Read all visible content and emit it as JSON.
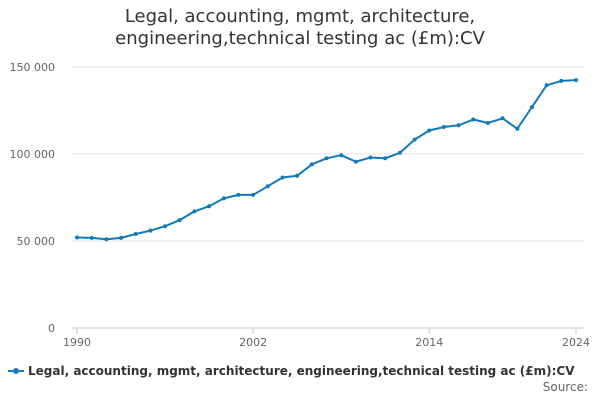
{
  "title_lines": [
    "Legal, accounting, mgmt, architecture,",
    "engineering,technical testing ac (£m):CV"
  ],
  "source_label": "Source:",
  "colors": {
    "series": "#0f7ab8",
    "grid": "#e6e6e6",
    "axis_text": "#666666"
  },
  "chart_data": {
    "type": "line",
    "title": "Legal, accounting, mgmt, architecture, engineering,technical testing ac (£m):CV",
    "xlabel": "",
    "ylabel": "",
    "xlim": [
      1990,
      2024
    ],
    "ylim": [
      0,
      150000
    ],
    "y_ticks": [
      0,
      50000,
      100000,
      150000
    ],
    "y_tick_labels": [
      "0",
      "50 000",
      "100 000",
      "150 000"
    ],
    "x_ticks": [
      1990,
      2002,
      2014,
      2024
    ],
    "x_tick_labels": [
      "1990",
      "2002",
      "2014",
      "2024"
    ],
    "grid": true,
    "legend_position": "bottom-left",
    "series": [
      {
        "name": "Legal, accounting, mgmt, architecture, engineering,technical testing ac (£m):CV",
        "x": [
          1990,
          1991,
          1992,
          1993,
          1994,
          1995,
          1996,
          1997,
          1998,
          1999,
          2000,
          2001,
          2002,
          2003,
          2004,
          2005,
          2006,
          2007,
          2008,
          2009,
          2010,
          2011,
          2012,
          2013,
          2014,
          2015,
          2016,
          2017,
          2018,
          2019,
          2020,
          2021,
          2022,
          2023,
          2024
        ],
        "y": [
          52000,
          51800,
          51000,
          51800,
          54000,
          56000,
          58500,
          62000,
          67000,
          70000,
          74500,
          76500,
          76500,
          81500,
          86500,
          87500,
          94000,
          97500,
          99300,
          95600,
          98000,
          97500,
          100700,
          108300,
          113500,
          115500,
          116500,
          119800,
          117800,
          120500,
          114500,
          127000,
          139500,
          142000,
          142500
        ]
      }
    ]
  }
}
